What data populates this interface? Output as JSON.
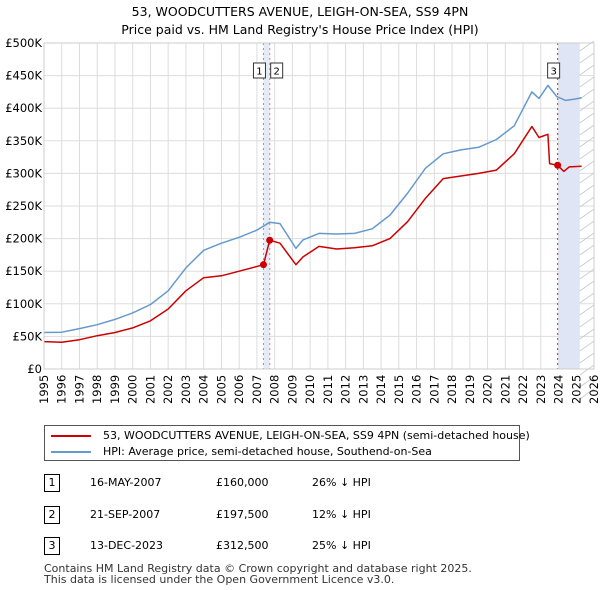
{
  "chart_data": {
    "type": "line",
    "title": "53, WOODCUTTERS AVENUE, LEIGH-ON-SEA, SS9 4PN",
    "subtitle": "Price paid vs. HM Land Registry's House Price Index (HPI)",
    "xlim": [
      1995,
      2026
    ],
    "ylim": [
      0,
      500000
    ],
    "x_ticks": [
      1995,
      1996,
      1997,
      1998,
      1999,
      2000,
      2001,
      2002,
      2003,
      2004,
      2005,
      2006,
      2007,
      2008,
      2009,
      2010,
      2011,
      2012,
      2013,
      2014,
      2015,
      2016,
      2017,
      2018,
      2019,
      2020,
      2021,
      2022,
      2023,
      2024,
      2025,
      2026
    ],
    "y_ticks": [
      {
        "value": 0,
        "label": "£0"
      },
      {
        "value": 50000,
        "label": "£50K"
      },
      {
        "value": 100000,
        "label": "£100K"
      },
      {
        "value": 150000,
        "label": "£150K"
      },
      {
        "value": 200000,
        "label": "£200K"
      },
      {
        "value": 250000,
        "label": "£250K"
      },
      {
        "value": 300000,
        "label": "£300K"
      },
      {
        "value": 350000,
        "label": "£350K"
      },
      {
        "value": 400000,
        "label": "£400K"
      },
      {
        "value": 450000,
        "label": "£450K"
      },
      {
        "value": 500000,
        "label": "£500K"
      }
    ],
    "shaded_region": [
      2024.0,
      2025.2
    ],
    "series": [
      {
        "name": "53, WOODCUTTERS AVENUE, LEIGH-ON-SEA, SS9 4PN (semi-detached house)",
        "color": "#cc0000",
        "points": [
          [
            1995,
            42000
          ],
          [
            1996,
            41000
          ],
          [
            1997,
            45000
          ],
          [
            1998,
            51000
          ],
          [
            1999,
            56000
          ],
          [
            2000,
            63000
          ],
          [
            2001,
            74000
          ],
          [
            2002,
            92000
          ],
          [
            2003,
            120000
          ],
          [
            2004,
            140000
          ],
          [
            2005,
            143000
          ],
          [
            2006,
            150000
          ],
          [
            2007.37,
            160000
          ],
          [
            2007.72,
            197500
          ],
          [
            2008.3,
            193000
          ],
          [
            2009.2,
            160000
          ],
          [
            2009.6,
            172000
          ],
          [
            2010.5,
            188000
          ],
          [
            2011.5,
            184000
          ],
          [
            2012.5,
            186000
          ],
          [
            2013.5,
            189000
          ],
          [
            2014.5,
            200000
          ],
          [
            2015.5,
            226000
          ],
          [
            2016.5,
            262000
          ],
          [
            2017.5,
            292000
          ],
          [
            2018.5,
            296000
          ],
          [
            2019.5,
            300000
          ],
          [
            2020.5,
            305000
          ],
          [
            2021.5,
            330000
          ],
          [
            2022.5,
            372000
          ],
          [
            2022.9,
            355000
          ],
          [
            2023.4,
            360000
          ],
          [
            2023.5,
            315000
          ],
          [
            2023.95,
            312500
          ],
          [
            2024.3,
            303000
          ],
          [
            2024.6,
            310000
          ],
          [
            2025.3,
            311000
          ]
        ]
      },
      {
        "name": "HPI: Average price, semi-detached house, Southend-on-Sea",
        "color": "#6699cc",
        "points": [
          [
            1995,
            56000
          ],
          [
            1996,
            56500
          ],
          [
            1997,
            62000
          ],
          [
            1998,
            68000
          ],
          [
            1999,
            76000
          ],
          [
            2000,
            86000
          ],
          [
            2001,
            99000
          ],
          [
            2002,
            120000
          ],
          [
            2003,
            155000
          ],
          [
            2004,
            182000
          ],
          [
            2005,
            193000
          ],
          [
            2006,
            202000
          ],
          [
            2007,
            213000
          ],
          [
            2007.72,
            225000
          ],
          [
            2008.3,
            223000
          ],
          [
            2009.2,
            185000
          ],
          [
            2009.6,
            198000
          ],
          [
            2010.5,
            208000
          ],
          [
            2011.5,
            207000
          ],
          [
            2012.5,
            208000
          ],
          [
            2013.5,
            215000
          ],
          [
            2014.5,
            236000
          ],
          [
            2015.5,
            270000
          ],
          [
            2016.5,
            308000
          ],
          [
            2017.5,
            330000
          ],
          [
            2018.5,
            336000
          ],
          [
            2019.5,
            340000
          ],
          [
            2020.5,
            352000
          ],
          [
            2021.5,
            373000
          ],
          [
            2022.5,
            425000
          ],
          [
            2022.9,
            415000
          ],
          [
            2023.4,
            435000
          ],
          [
            2023.9,
            418000
          ],
          [
            2024.4,
            412000
          ],
          [
            2024.9,
            414000
          ],
          [
            2025.3,
            416000
          ]
        ]
      }
    ],
    "transactions": [
      {
        "label": "1",
        "x": 2007.37,
        "price": 160000,
        "date": "16-MAY-2007",
        "price_text": "£160,000",
        "delta_text": "26% ↓ HPI"
      },
      {
        "label": "2",
        "x": 2007.72,
        "price": 197500,
        "date": "21-SEP-2007",
        "price_text": "£197,500",
        "delta_text": "12% ↓ HPI"
      },
      {
        "label": "3",
        "x": 2023.95,
        "price": 312500,
        "date": "13-DEC-2023",
        "price_text": "£312,500",
        "delta_text": "25% ↓ HPI"
      }
    ]
  },
  "legend": {
    "property_label": "53, WOODCUTTERS AVENUE, LEIGH-ON-SEA, SS9 4PN (semi-detached house)",
    "hpi_label": "HPI: Average price, semi-detached house, Southend-on-Sea"
  },
  "footer": {
    "line1": "Contains HM Land Registry data © Crown copyright and database right 2025.",
    "line2": "This data is licensed under the Open Government Licence v3.0."
  }
}
